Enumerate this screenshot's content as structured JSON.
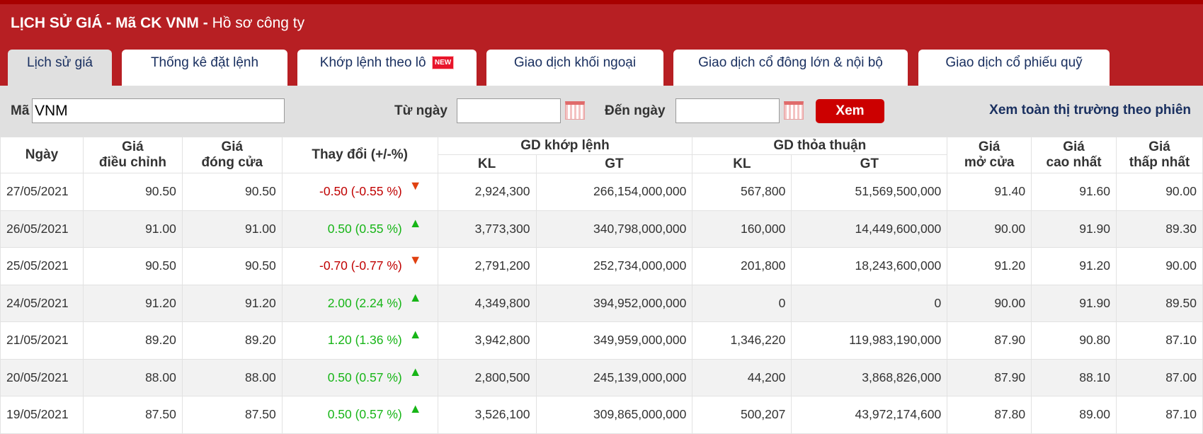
{
  "header": {
    "title_bold": "LỊCH SỬ GIÁ - Mã CK VNM -",
    "title_rest": "Hồ sơ công ty"
  },
  "tabs": [
    {
      "label": "Lịch sử giá",
      "active": true
    },
    {
      "label": "Thống kê đặt lệnh"
    },
    {
      "label": "Khớp lệnh theo lô",
      "badge": "NEW"
    },
    {
      "label": "Giao dịch khối ngoại"
    },
    {
      "label": "Giao dịch cổ đông lớn & nội bộ"
    },
    {
      "label": "Giao dịch cổ phiếu quỹ"
    }
  ],
  "filter": {
    "code_label": "Mã",
    "code_value": "VNM",
    "from_label": "Từ ngày",
    "from_value": "",
    "to_label": "Đến ngày",
    "to_value": "",
    "submit": "Xem",
    "market_link": "Xem toàn thị trường theo phiên"
  },
  "columns": {
    "date": "Ngày",
    "adj_1": "Giá",
    "adj_2": "điều chỉnh",
    "close_1": "Giá",
    "close_2": "đóng cửa",
    "change": "Thay đổi (+/-%)",
    "matched": "GD khớp lệnh",
    "negotiated": "GD thỏa thuận",
    "kl": "KL",
    "gt": "GT",
    "open_1": "Giá",
    "open_2": "mở cửa",
    "high_1": "Giá",
    "high_2": "cao nhất",
    "low_1": "Giá",
    "low_2": "thấp nhất"
  },
  "colors": {
    "up": "#17b517",
    "down": "#c00000",
    "brand": "#b71f23"
  },
  "rows": [
    {
      "date": "27/05/2021",
      "adj": "90.50",
      "close": "90.50",
      "change": "-0.50 (-0.55 %)",
      "dir": "down",
      "m_kl": "2,924,300",
      "m_gt": "266,154,000,000",
      "n_kl": "567,800",
      "n_gt": "51,569,500,000",
      "open": "91.40",
      "high": "91.60",
      "low": "90.00"
    },
    {
      "date": "26/05/2021",
      "adj": "91.00",
      "close": "91.00",
      "change": "0.50 (0.55 %)",
      "dir": "up",
      "m_kl": "3,773,300",
      "m_gt": "340,798,000,000",
      "n_kl": "160,000",
      "n_gt": "14,449,600,000",
      "open": "90.00",
      "high": "91.90",
      "low": "89.30"
    },
    {
      "date": "25/05/2021",
      "adj": "90.50",
      "close": "90.50",
      "change": "-0.70 (-0.77 %)",
      "dir": "down",
      "m_kl": "2,791,200",
      "m_gt": "252,734,000,000",
      "n_kl": "201,800",
      "n_gt": "18,243,600,000",
      "open": "91.20",
      "high": "91.20",
      "low": "90.00"
    },
    {
      "date": "24/05/2021",
      "adj": "91.20",
      "close": "91.20",
      "change": "2.00 (2.24 %)",
      "dir": "up",
      "m_kl": "4,349,800",
      "m_gt": "394,952,000,000",
      "n_kl": "0",
      "n_gt": "0",
      "open": "90.00",
      "high": "91.90",
      "low": "89.50"
    },
    {
      "date": "21/05/2021",
      "adj": "89.20",
      "close": "89.20",
      "change": "1.20 (1.36 %)",
      "dir": "up",
      "m_kl": "3,942,800",
      "m_gt": "349,959,000,000",
      "n_kl": "1,346,220",
      "n_gt": "119,983,190,000",
      "open": "87.90",
      "high": "90.80",
      "low": "87.10"
    },
    {
      "date": "20/05/2021",
      "adj": "88.00",
      "close": "88.00",
      "change": "0.50 (0.57 %)",
      "dir": "up",
      "m_kl": "2,800,500",
      "m_gt": "245,139,000,000",
      "n_kl": "44,200",
      "n_gt": "3,868,826,000",
      "open": "87.90",
      "high": "88.10",
      "low": "87.00"
    },
    {
      "date": "19/05/2021",
      "adj": "87.50",
      "close": "87.50",
      "change": "0.50 (0.57 %)",
      "dir": "up",
      "m_kl": "3,526,100",
      "m_gt": "309,865,000,000",
      "n_kl": "500,207",
      "n_gt": "43,972,174,600",
      "open": "87.80",
      "high": "89.00",
      "low": "87.10"
    }
  ]
}
